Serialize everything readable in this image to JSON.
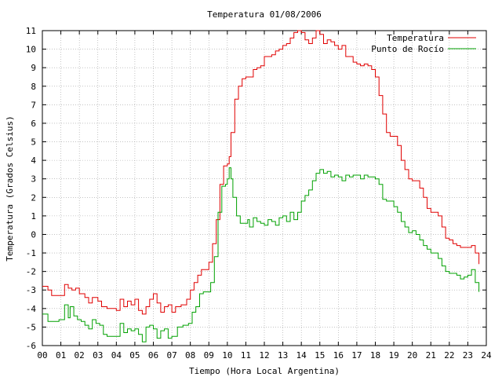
{
  "chart_data": {
    "type": "line",
    "title": "Temperatura 01/08/2006",
    "xlabel": "Tiempo (Hora Local Argentina)",
    "ylabel": "Temperatura (Grados Celsius)",
    "xlim": [
      0,
      24
    ],
    "ylim": [
      -6,
      11
    ],
    "x_ticks": [
      0,
      1,
      2,
      3,
      4,
      5,
      6,
      7,
      8,
      9,
      10,
      11,
      12,
      13,
      14,
      15,
      16,
      17,
      18,
      19,
      20,
      21,
      22,
      23,
      24
    ],
    "x_tick_labels": [
      "00",
      "01",
      "02",
      "03",
      "04",
      "05",
      "06",
      "07",
      "08",
      "09",
      "10",
      "11",
      "12",
      "13",
      "14",
      "15",
      "16",
      "17",
      "18",
      "19",
      "20",
      "21",
      "22",
      "23",
      "24"
    ],
    "y_ticks": [
      -6,
      -5,
      -4,
      -3,
      -2,
      -1,
      0,
      1,
      2,
      3,
      4,
      5,
      6,
      7,
      8,
      9,
      10,
      11
    ],
    "grid": true,
    "legend_position": "top-right",
    "series": [
      {
        "name": "Temperatura",
        "color": "#e00000",
        "points": [
          [
            0.0,
            -2.8
          ],
          [
            0.3,
            -3.0
          ],
          [
            0.5,
            -3.3
          ],
          [
            0.8,
            -3.3
          ],
          [
            1.0,
            -3.3
          ],
          [
            1.2,
            -2.7
          ],
          [
            1.4,
            -2.9
          ],
          [
            1.6,
            -3.0
          ],
          [
            1.8,
            -2.9
          ],
          [
            2.0,
            -3.2
          ],
          [
            2.3,
            -3.4
          ],
          [
            2.5,
            -3.7
          ],
          [
            2.7,
            -3.4
          ],
          [
            3.0,
            -3.6
          ],
          [
            3.2,
            -3.9
          ],
          [
            3.5,
            -4.0
          ],
          [
            3.8,
            -4.0
          ],
          [
            4.0,
            -4.1
          ],
          [
            4.2,
            -3.5
          ],
          [
            4.4,
            -3.9
          ],
          [
            4.6,
            -3.6
          ],
          [
            4.8,
            -3.8
          ],
          [
            5.0,
            -3.5
          ],
          [
            5.2,
            -4.1
          ],
          [
            5.4,
            -4.3
          ],
          [
            5.6,
            -3.9
          ],
          [
            5.8,
            -3.5
          ],
          [
            6.0,
            -3.2
          ],
          [
            6.2,
            -3.7
          ],
          [
            6.4,
            -4.2
          ],
          [
            6.6,
            -3.9
          ],
          [
            6.8,
            -3.8
          ],
          [
            7.0,
            -4.2
          ],
          [
            7.2,
            -3.9
          ],
          [
            7.5,
            -3.8
          ],
          [
            7.8,
            -3.5
          ],
          [
            8.0,
            -3.0
          ],
          [
            8.2,
            -2.6
          ],
          [
            8.4,
            -2.2
          ],
          [
            8.6,
            -1.9
          ],
          [
            8.8,
            -1.9
          ],
          [
            9.0,
            -1.5
          ],
          [
            9.2,
            -0.5
          ],
          [
            9.4,
            0.8
          ],
          [
            9.6,
            2.7
          ],
          [
            9.8,
            3.7
          ],
          [
            10.0,
            3.8
          ],
          [
            10.1,
            4.2
          ],
          [
            10.2,
            5.5
          ],
          [
            10.4,
            7.3
          ],
          [
            10.6,
            8.0
          ],
          [
            10.8,
            8.4
          ],
          [
            11.0,
            8.5
          ],
          [
            11.2,
            8.5
          ],
          [
            11.4,
            8.9
          ],
          [
            11.6,
            9.0
          ],
          [
            11.8,
            9.1
          ],
          [
            12.0,
            9.6
          ],
          [
            12.2,
            9.6
          ],
          [
            12.4,
            9.7
          ],
          [
            12.6,
            9.9
          ],
          [
            12.8,
            10.0
          ],
          [
            13.0,
            10.2
          ],
          [
            13.2,
            10.3
          ],
          [
            13.4,
            10.6
          ],
          [
            13.6,
            10.9
          ],
          [
            13.8,
            11.0
          ],
          [
            14.0,
            10.9
          ],
          [
            14.2,
            10.5
          ],
          [
            14.4,
            10.3
          ],
          [
            14.6,
            10.6
          ],
          [
            14.8,
            11.0
          ],
          [
            15.0,
            10.8
          ],
          [
            15.2,
            10.3
          ],
          [
            15.4,
            10.5
          ],
          [
            15.6,
            10.4
          ],
          [
            15.8,
            10.2
          ],
          [
            16.0,
            10.0
          ],
          [
            16.2,
            10.2
          ],
          [
            16.4,
            9.6
          ],
          [
            16.6,
            9.6
          ],
          [
            16.8,
            9.3
          ],
          [
            17.0,
            9.2
          ],
          [
            17.2,
            9.1
          ],
          [
            17.4,
            9.2
          ],
          [
            17.6,
            9.1
          ],
          [
            17.8,
            8.9
          ],
          [
            18.0,
            8.5
          ],
          [
            18.2,
            7.5
          ],
          [
            18.4,
            6.5
          ],
          [
            18.6,
            5.5
          ],
          [
            18.8,
            5.3
          ],
          [
            19.0,
            5.3
          ],
          [
            19.2,
            4.8
          ],
          [
            19.4,
            4.0
          ],
          [
            19.6,
            3.5
          ],
          [
            19.8,
            3.0
          ],
          [
            20.0,
            2.9
          ],
          [
            20.2,
            2.9
          ],
          [
            20.4,
            2.5
          ],
          [
            20.6,
            2.0
          ],
          [
            20.8,
            1.4
          ],
          [
            21.0,
            1.2
          ],
          [
            21.2,
            1.2
          ],
          [
            21.4,
            1.0
          ],
          [
            21.6,
            0.4
          ],
          [
            21.8,
            -0.2
          ],
          [
            22.0,
            -0.3
          ],
          [
            22.2,
            -0.5
          ],
          [
            22.4,
            -0.6
          ],
          [
            22.6,
            -0.7
          ],
          [
            22.8,
            -0.7
          ],
          [
            23.0,
            -0.7
          ],
          [
            23.2,
            -0.6
          ],
          [
            23.4,
            -1.0
          ],
          [
            23.6,
            -1.6
          ]
        ]
      },
      {
        "name": "Punto de Rocío",
        "color": "#00a000",
        "points": [
          [
            0.0,
            -4.3
          ],
          [
            0.3,
            -4.7
          ],
          [
            0.6,
            -4.7
          ],
          [
            0.9,
            -4.6
          ],
          [
            1.1,
            -4.6
          ],
          [
            1.2,
            -3.8
          ],
          [
            1.4,
            -4.5
          ],
          [
            1.5,
            -3.9
          ],
          [
            1.7,
            -4.4
          ],
          [
            1.9,
            -4.6
          ],
          [
            2.1,
            -4.7
          ],
          [
            2.3,
            -4.9
          ],
          [
            2.5,
            -5.1
          ],
          [
            2.7,
            -4.6
          ],
          [
            2.9,
            -4.8
          ],
          [
            3.1,
            -4.9
          ],
          [
            3.3,
            -5.4
          ],
          [
            3.5,
            -5.5
          ],
          [
            3.8,
            -5.5
          ],
          [
            4.0,
            -5.5
          ],
          [
            4.2,
            -4.8
          ],
          [
            4.4,
            -5.3
          ],
          [
            4.6,
            -5.1
          ],
          [
            4.8,
            -5.2
          ],
          [
            5.0,
            -5.1
          ],
          [
            5.2,
            -5.4
          ],
          [
            5.4,
            -5.8
          ],
          [
            5.6,
            -5.0
          ],
          [
            5.8,
            -4.9
          ],
          [
            6.0,
            -5.1
          ],
          [
            6.2,
            -5.6
          ],
          [
            6.4,
            -5.2
          ],
          [
            6.6,
            -5.1
          ],
          [
            6.8,
            -5.6
          ],
          [
            7.0,
            -5.5
          ],
          [
            7.3,
            -5.0
          ],
          [
            7.6,
            -4.9
          ],
          [
            7.9,
            -4.8
          ],
          [
            8.1,
            -4.2
          ],
          [
            8.3,
            -3.9
          ],
          [
            8.5,
            -3.2
          ],
          [
            8.7,
            -3.1
          ],
          [
            8.9,
            -3.1
          ],
          [
            9.1,
            -2.6
          ],
          [
            9.3,
            -1.2
          ],
          [
            9.5,
            1.2
          ],
          [
            9.7,
            2.6
          ],
          [
            9.9,
            2.7
          ],
          [
            10.0,
            3.0
          ],
          [
            10.1,
            3.6
          ],
          [
            10.2,
            3.0
          ],
          [
            10.3,
            2.0
          ],
          [
            10.5,
            1.0
          ],
          [
            10.7,
            0.6
          ],
          [
            10.9,
            0.6
          ],
          [
            11.1,
            0.8
          ],
          [
            11.2,
            0.4
          ],
          [
            11.4,
            0.9
          ],
          [
            11.6,
            0.7
          ],
          [
            11.8,
            0.6
          ],
          [
            12.0,
            0.5
          ],
          [
            12.2,
            0.8
          ],
          [
            12.4,
            0.7
          ],
          [
            12.6,
            0.5
          ],
          [
            12.8,
            0.9
          ],
          [
            13.0,
            1.0
          ],
          [
            13.2,
            0.7
          ],
          [
            13.4,
            1.2
          ],
          [
            13.6,
            0.8
          ],
          [
            13.8,
            1.2
          ],
          [
            14.0,
            1.8
          ],
          [
            14.2,
            2.1
          ],
          [
            14.4,
            2.4
          ],
          [
            14.6,
            2.9
          ],
          [
            14.8,
            3.3
          ],
          [
            15.0,
            3.5
          ],
          [
            15.2,
            3.3
          ],
          [
            15.4,
            3.4
          ],
          [
            15.6,
            3.1
          ],
          [
            15.8,
            3.2
          ],
          [
            16.0,
            3.1
          ],
          [
            16.2,
            2.9
          ],
          [
            16.4,
            3.2
          ],
          [
            16.6,
            3.1
          ],
          [
            16.8,
            3.2
          ],
          [
            17.0,
            3.2
          ],
          [
            17.2,
            3.0
          ],
          [
            17.4,
            3.2
          ],
          [
            17.6,
            3.1
          ],
          [
            17.8,
            3.1
          ],
          [
            18.0,
            3.0
          ],
          [
            18.2,
            2.7
          ],
          [
            18.4,
            1.9
          ],
          [
            18.6,
            1.8
          ],
          [
            18.8,
            1.8
          ],
          [
            19.0,
            1.5
          ],
          [
            19.2,
            1.2
          ],
          [
            19.4,
            0.7
          ],
          [
            19.6,
            0.4
          ],
          [
            19.8,
            0.1
          ],
          [
            20.0,
            0.2
          ],
          [
            20.2,
            0.0
          ],
          [
            20.4,
            -0.3
          ],
          [
            20.6,
            -0.6
          ],
          [
            20.8,
            -0.8
          ],
          [
            21.0,
            -1.0
          ],
          [
            21.2,
            -1.0
          ],
          [
            21.4,
            -1.3
          ],
          [
            21.6,
            -1.7
          ],
          [
            21.8,
            -2.0
          ],
          [
            22.0,
            -2.1
          ],
          [
            22.2,
            -2.1
          ],
          [
            22.4,
            -2.2
          ],
          [
            22.6,
            -2.4
          ],
          [
            22.8,
            -2.3
          ],
          [
            23.0,
            -2.2
          ],
          [
            23.2,
            -1.9
          ],
          [
            23.4,
            -2.6
          ],
          [
            23.6,
            -3.1
          ]
        ]
      }
    ]
  }
}
